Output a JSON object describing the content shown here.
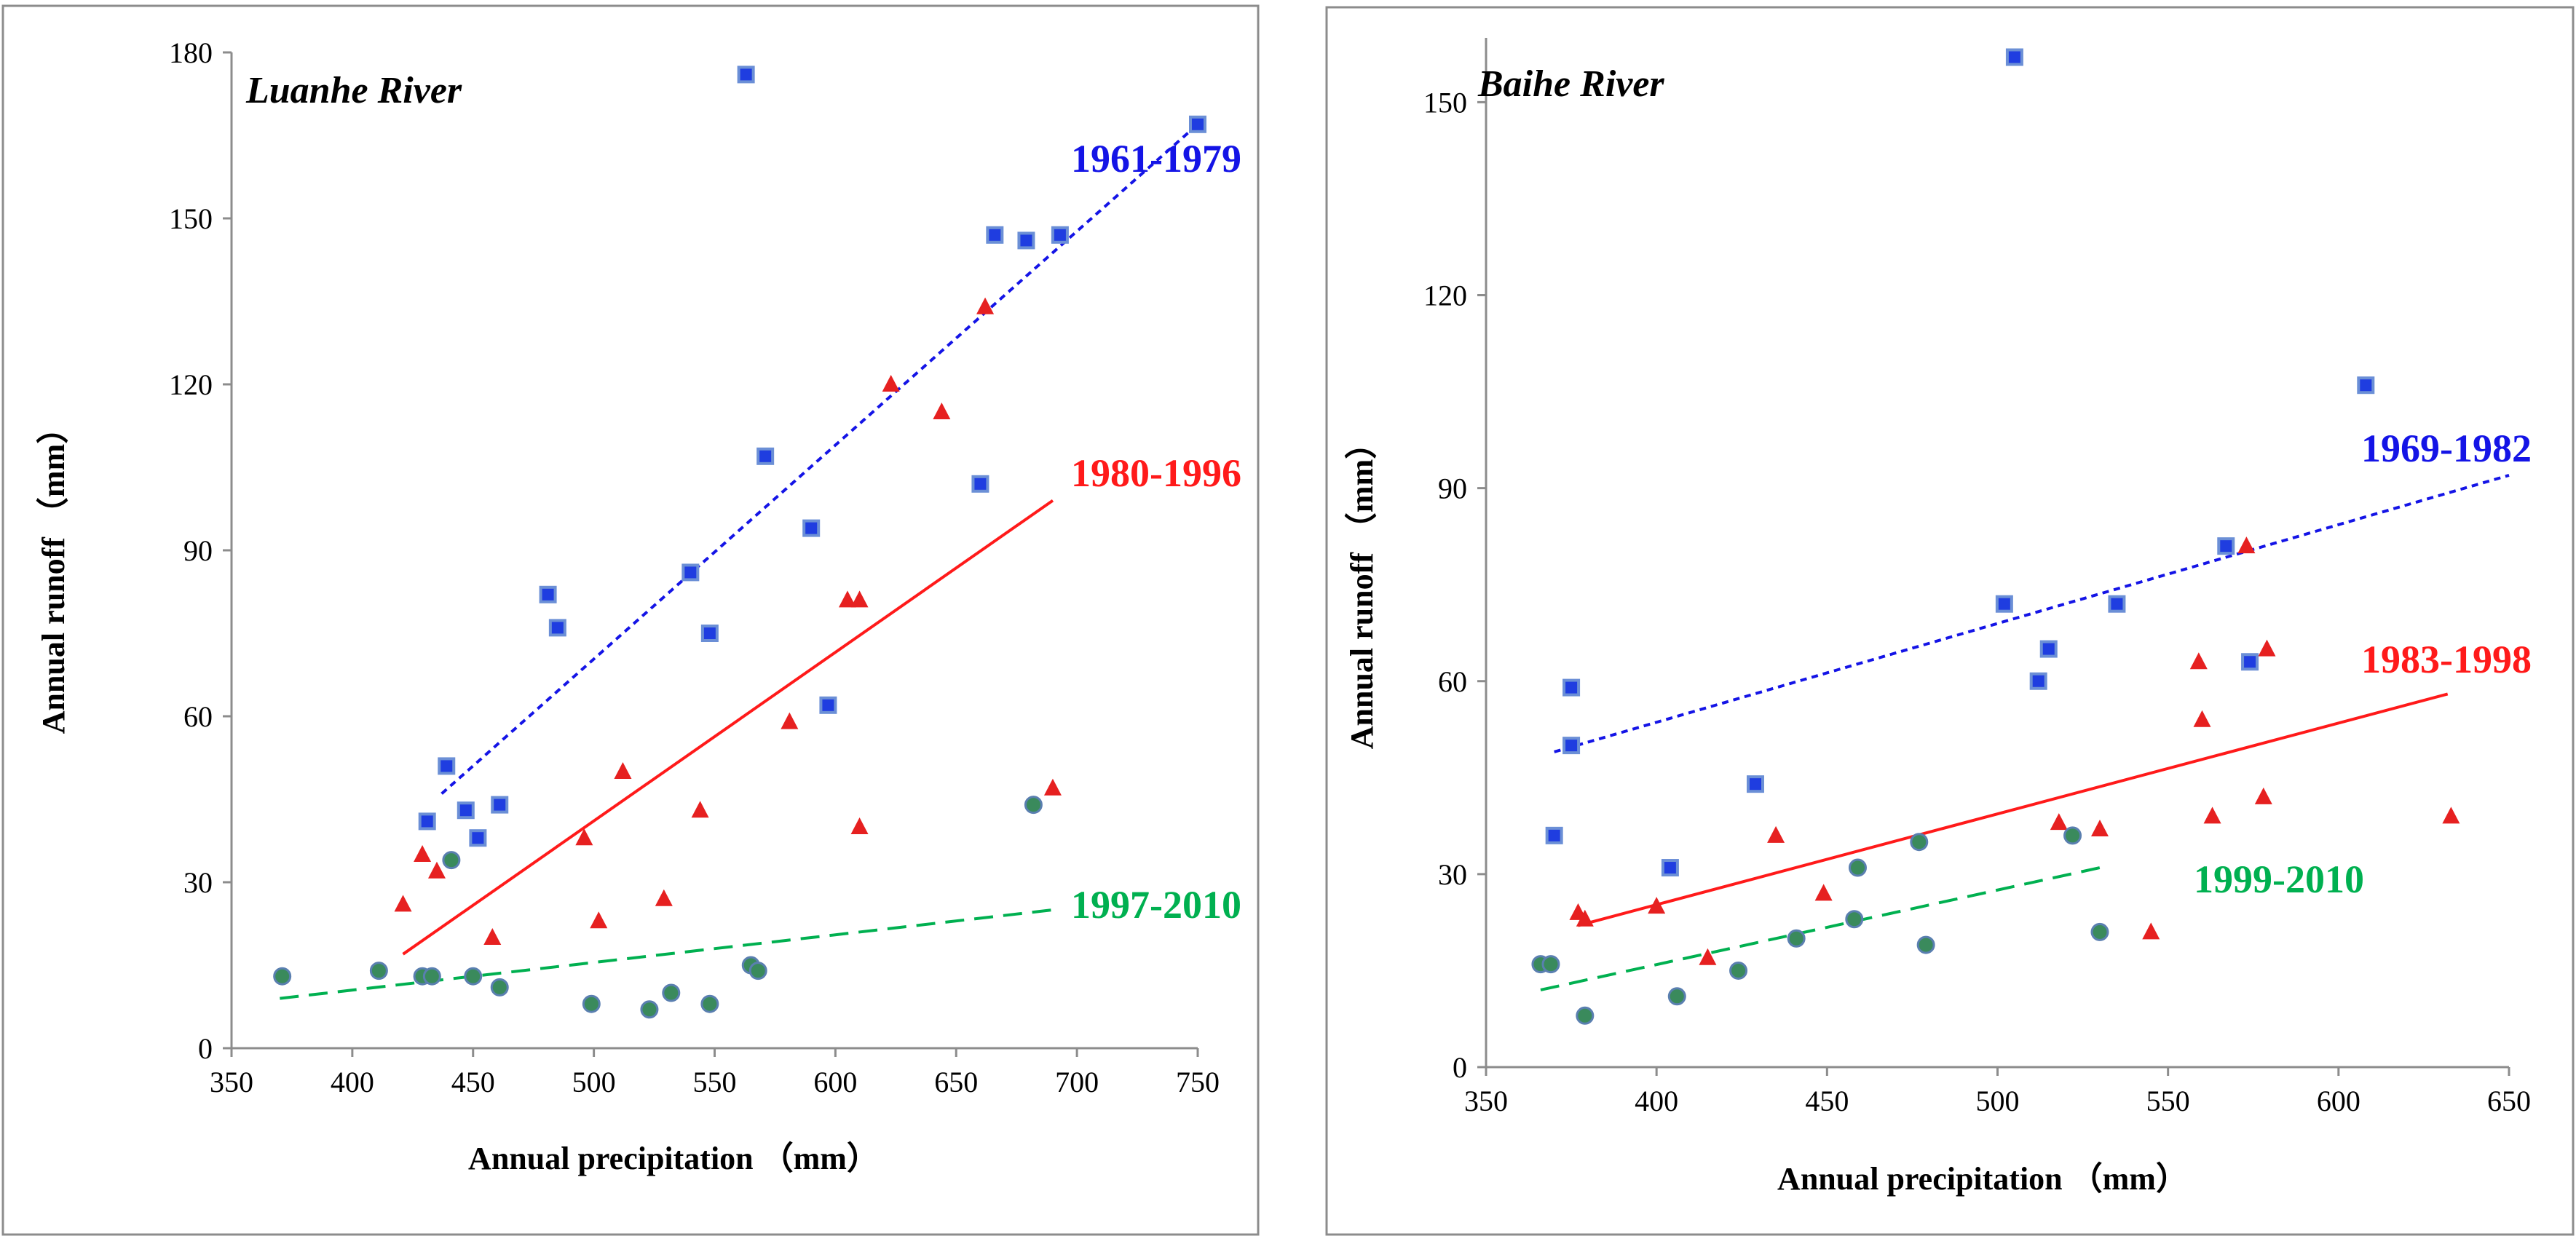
{
  "colors": {
    "blue": "#1414e6",
    "red": "#ff1a1a",
    "green": "#00b050",
    "square_fill": "#1f3de0",
    "square_stroke": "#6b8fd6",
    "triangle": "#e62020",
    "circle_fill": "#3a8a5c",
    "circle_stroke": "#5a7fb0",
    "axis": "#8c8c8c",
    "frame": "#8c8c8c"
  },
  "chart_data": [
    {
      "type": "scatter",
      "title": "Luanhe River",
      "xlabel": "Annual precipitation （mm）",
      "ylabel": "Annual runoff （mm）",
      "xlim": [
        350,
        750
      ],
      "ylim": [
        0,
        180
      ],
      "xticks": [
        "350",
        "400",
        "450",
        "500",
        "550",
        "600",
        "650",
        "700",
        "750"
      ],
      "yticks": [
        "0",
        "30",
        "60",
        "90",
        "120",
        "150",
        "180"
      ],
      "grid": false,
      "series": [
        {
          "name": "1961-1979",
          "marker": "square",
          "color": "blue",
          "trend_style": "dotted",
          "trend": [
            [
              437,
              46
            ],
            [
              750,
              167
            ]
          ],
          "points": [
            [
              431,
              41
            ],
            [
              439,
              51
            ],
            [
              447,
              43
            ],
            [
              452,
              38
            ],
            [
              461,
              44
            ],
            [
              481,
              82
            ],
            [
              485,
              76
            ],
            [
              540,
              86
            ],
            [
              548,
              75
            ],
            [
              563,
              176
            ],
            [
              571,
              107
            ],
            [
              590,
              94
            ],
            [
              597,
              62
            ],
            [
              660,
              102
            ],
            [
              666,
              147
            ],
            [
              679,
              146
            ],
            [
              693,
              147
            ],
            [
              750,
              167
            ]
          ]
        },
        {
          "name": "1980-1996",
          "marker": "triangle",
          "color": "red",
          "trend_style": "solid",
          "trend": [
            [
              421,
              17
            ],
            [
              690,
              99
            ]
          ],
          "points": [
            [
              421,
              26
            ],
            [
              429,
              35
            ],
            [
              435,
              32
            ],
            [
              458,
              20
            ],
            [
              496,
              38
            ],
            [
              502,
              23
            ],
            [
              512,
              50
            ],
            [
              529,
              27
            ],
            [
              544,
              43
            ],
            [
              581,
              59
            ],
            [
              605,
              81
            ],
            [
              610,
              81
            ],
            [
              610,
              40
            ],
            [
              623,
              120
            ],
            [
              644,
              115
            ],
            [
              662,
              134
            ],
            [
              690,
              47
            ]
          ]
        },
        {
          "name": "1997-2010",
          "marker": "circle",
          "color": "green",
          "trend_style": "dashed",
          "trend": [
            [
              370,
              9
            ],
            [
              690,
              25
            ]
          ],
          "points": [
            [
              371,
              13
            ],
            [
              411,
              14
            ],
            [
              429,
              13
            ],
            [
              433,
              13
            ],
            [
              441,
              34
            ],
            [
              450,
              13
            ],
            [
              461,
              11
            ],
            [
              499,
              8
            ],
            [
              523,
              7
            ],
            [
              532,
              10
            ],
            [
              548,
              8
            ],
            [
              565,
              15
            ],
            [
              568,
              14
            ],
            [
              682,
              44
            ]
          ]
        }
      ]
    },
    {
      "type": "scatter",
      "title": "Baihe River",
      "xlabel": "Annual precipitation （mm）",
      "ylabel": "Annual runoff （mm）",
      "xlim": [
        350,
        650
      ],
      "ylim": [
        0,
        160
      ],
      "xticks": [
        "350",
        "400",
        "450",
        "500",
        "550",
        "600",
        "650"
      ],
      "yticks": [
        "0",
        "30",
        "60",
        "90",
        "120",
        "150"
      ],
      "grid": false,
      "series": [
        {
          "name": "1969-1982",
          "marker": "square",
          "color": "blue",
          "trend_style": "dotted",
          "trend": [
            [
              370,
              49
            ],
            [
              650,
              92
            ]
          ],
          "points": [
            [
              370,
              36
            ],
            [
              375,
              59
            ],
            [
              375,
              50
            ],
            [
              404,
              31
            ],
            [
              429,
              44
            ],
            [
              502,
              72
            ],
            [
              505,
              157
            ],
            [
              512,
              60
            ],
            [
              515,
              65
            ],
            [
              535,
              72
            ],
            [
              567,
              81
            ],
            [
              574,
              63
            ],
            [
              608,
              106
            ]
          ]
        },
        {
          "name": "1983-1998",
          "marker": "triangle",
          "color": "red",
          "trend_style": "solid",
          "trend": [
            [
              377,
              22
            ],
            [
              632,
              58
            ]
          ],
          "points": [
            [
              377,
              24
            ],
            [
              379,
              23
            ],
            [
              400,
              25
            ],
            [
              415,
              17
            ],
            [
              435,
              36
            ],
            [
              449,
              27
            ],
            [
              518,
              38
            ],
            [
              530,
              37
            ],
            [
              545,
              21
            ],
            [
              559,
              63
            ],
            [
              560,
              54
            ],
            [
              563,
              39
            ],
            [
              573,
              81
            ],
            [
              579,
              65
            ],
            [
              578,
              42
            ],
            [
              633,
              39
            ]
          ]
        },
        {
          "name": "1999-2010",
          "marker": "circle",
          "color": "green",
          "trend_style": "dashed",
          "trend": [
            [
              366,
              12
            ],
            [
              530,
              31
            ]
          ],
          "points": [
            [
              366,
              16
            ],
            [
              369,
              16
            ],
            [
              379,
              8
            ],
            [
              406,
              11
            ],
            [
              424,
              15
            ],
            [
              441,
              20
            ],
            [
              458,
              23
            ],
            [
              459,
              31
            ],
            [
              477,
              35
            ],
            [
              479,
              19
            ],
            [
              522,
              36
            ],
            [
              530,
              21
            ]
          ]
        }
      ]
    }
  ]
}
